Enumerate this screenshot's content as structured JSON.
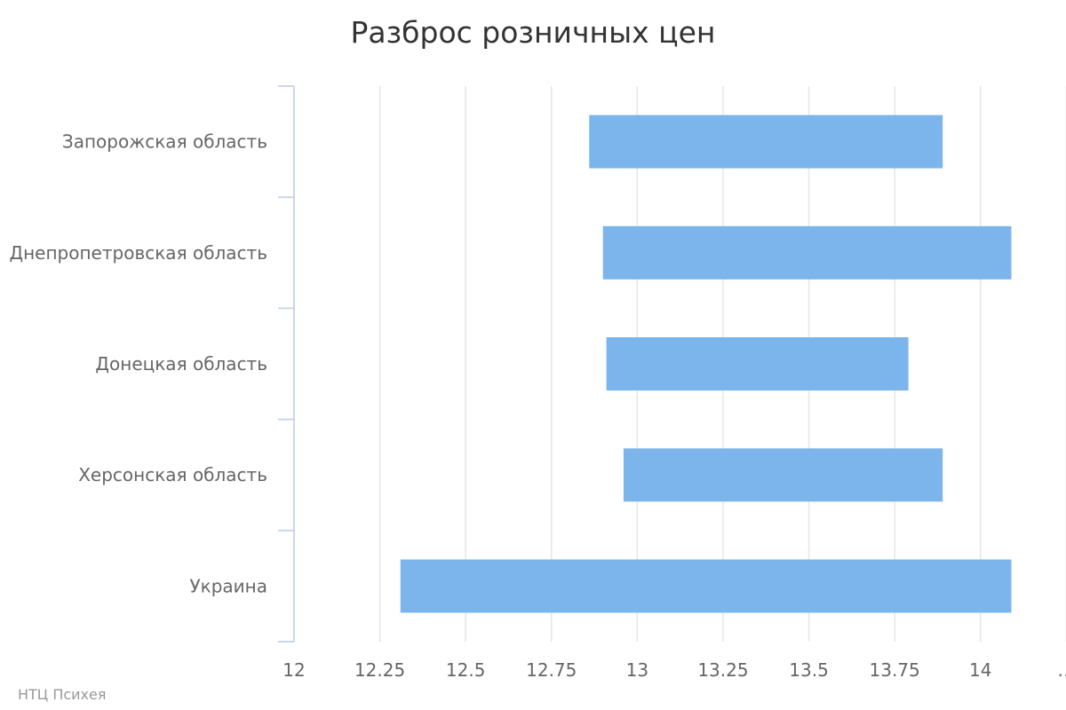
{
  "chart_data": {
    "type": "bar",
    "subtype": "columnrange-horizontal",
    "title": "Разброс розничных цен",
    "xlabel": "",
    "ylabel": "",
    "categories": [
      "Запорожская область",
      "Днепропетровская область",
      "Донецкая область",
      "Херсонская область",
      "Украина"
    ],
    "series": [
      {
        "color": "#7cb5ec",
        "low": [
          12.86,
          12.9,
          12.91,
          12.96,
          12.31
        ],
        "high": [
          13.89,
          14.09,
          13.79,
          13.89,
          14.09
        ]
      }
    ],
    "xlim": [
      12,
      14.2
    ],
    "ticks": [
      "12",
      "12.25",
      "12.5",
      "12.75",
      "13",
      "13.25",
      "13.5",
      "13.75",
      "14",
      "…"
    ],
    "grid": true,
    "legend": "none"
  },
  "credits": "НТЦ Психея"
}
